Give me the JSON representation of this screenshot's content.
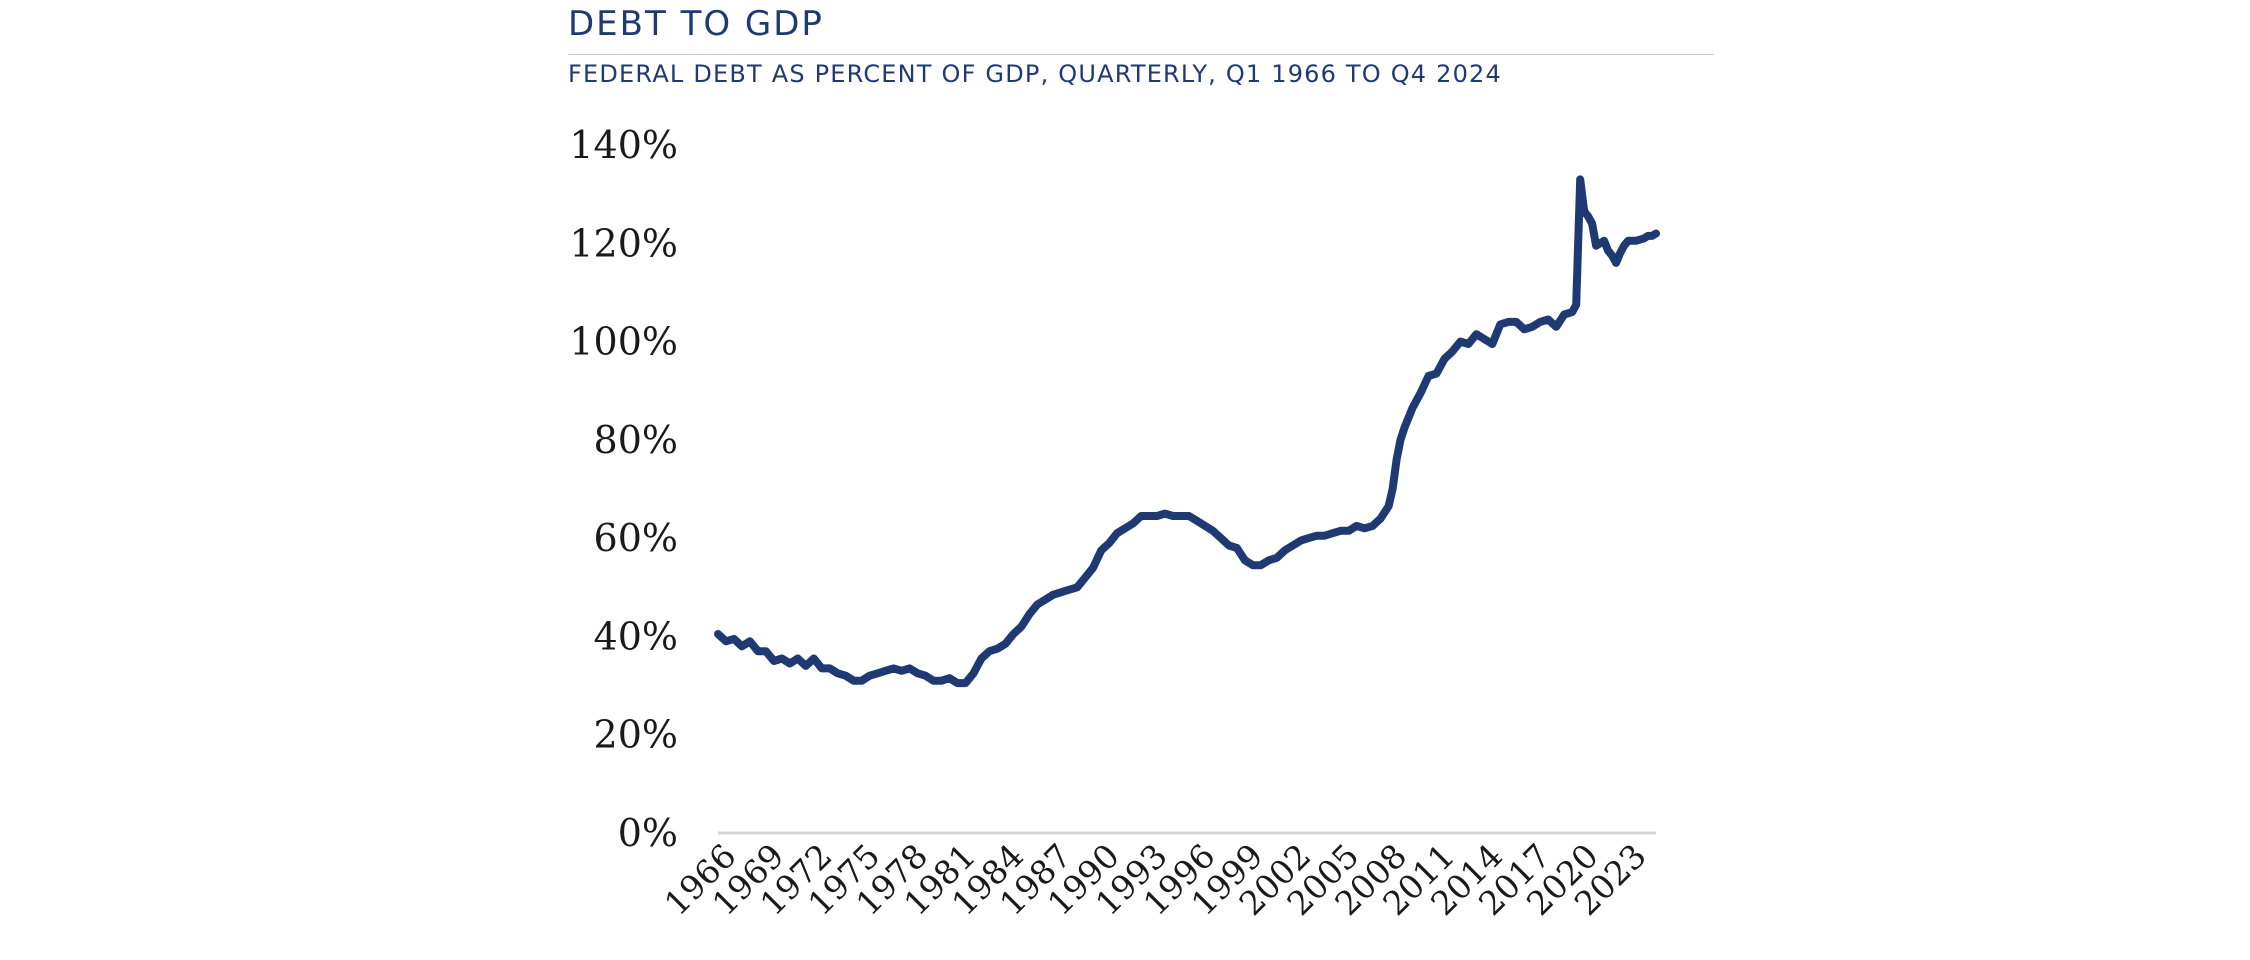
{
  "chart_data": {
    "type": "line",
    "title": "DEBT TO GDP",
    "subtitle": "FEDERAL DEBT AS PERCENT OF GDP, QUARTERLY, Q1 1966 TO Q4 2024",
    "xlabel": "",
    "ylabel": "",
    "ylim": [
      0,
      140
    ],
    "xlim": [
      1966.0,
      2024.75
    ],
    "y_ticks": [
      0,
      20,
      40,
      60,
      80,
      100,
      120,
      140
    ],
    "y_tick_labels": [
      "0%",
      "20%",
      "40%",
      "60%",
      "80%",
      "100%",
      "120%",
      "140%"
    ],
    "x_ticks": [
      1966,
      1969,
      1972,
      1975,
      1978,
      1981,
      1984,
      1987,
      1990,
      1993,
      1996,
      1999,
      2002,
      2005,
      2008,
      2011,
      2014,
      2017,
      2020,
      2023
    ],
    "x_tick_labels": [
      "1966",
      "1969",
      "1972",
      "1975",
      "1978",
      "1981",
      "1984",
      "1987",
      "1990",
      "1993",
      "1996",
      "1999",
      "2002",
      "2005",
      "2008",
      "2011",
      "2014",
      "2017",
      "2020",
      "2023"
    ],
    "grid": false,
    "legend": "none",
    "series": [
      {
        "name": "Federal Debt as Percent of GDP",
        "color": "#1f3a72",
        "x": [
          1966.0,
          1966.5,
          1967.0,
          1967.5,
          1968.0,
          1968.5,
          1969.0,
          1969.5,
          1970.0,
          1970.5,
          1971.0,
          1971.5,
          1972.0,
          1972.5,
          1973.0,
          1973.5,
          1974.0,
          1974.5,
          1975.0,
          1975.5,
          1976.0,
          1976.5,
          1977.0,
          1977.5,
          1978.0,
          1978.5,
          1979.0,
          1979.5,
          1980.0,
          1980.5,
          1981.0,
          1981.5,
          1982.0,
          1982.5,
          1983.0,
          1983.5,
          1984.0,
          1984.5,
          1985.0,
          1985.5,
          1986.0,
          1986.5,
          1987.0,
          1987.5,
          1988.0,
          1988.5,
          1989.0,
          1989.5,
          1990.0,
          1990.5,
          1991.0,
          1991.5,
          1992.0,
          1992.5,
          1993.0,
          1993.5,
          1994.0,
          1994.5,
          1995.0,
          1995.5,
          1996.0,
          1996.5,
          1997.0,
          1997.5,
          1998.0,
          1998.5,
          1999.0,
          1999.5,
          2000.0,
          2000.5,
          2001.0,
          2001.5,
          2002.0,
          2002.5,
          2003.0,
          2003.5,
          2004.0,
          2004.5,
          2005.0,
          2005.5,
          2006.0,
          2006.5,
          2007.0,
          2007.5,
          2008.0,
          2008.25,
          2008.5,
          2008.75,
          2009.0,
          2009.25,
          2009.5,
          2010.0,
          2010.5,
          2011.0,
          2011.5,
          2012.0,
          2012.5,
          2013.0,
          2013.5,
          2014.0,
          2014.5,
          2015.0,
          2015.5,
          2016.0,
          2016.5,
          2017.0,
          2017.5,
          2018.0,
          2018.5,
          2019.0,
          2019.5,
          2019.75,
          2020.0,
          2020.25,
          2020.5,
          2020.75,
          2021.0,
          2021.25,
          2021.5,
          2021.75,
          2022.0,
          2022.25,
          2022.5,
          2022.75,
          2023.0,
          2023.5,
          2024.0,
          2024.25,
          2024.5,
          2024.75
        ],
        "values": [
          40.5,
          39.0,
          39.5,
          38.0,
          39.0,
          37.0,
          37.0,
          35.0,
          35.5,
          34.5,
          35.5,
          34.0,
          35.5,
          33.5,
          33.5,
          32.5,
          32.0,
          31.0,
          31.0,
          32.0,
          32.5,
          33.0,
          33.5,
          33.0,
          33.5,
          32.5,
          32.0,
          31.0,
          31.0,
          31.5,
          30.5,
          30.5,
          32.5,
          35.5,
          37.0,
          37.5,
          38.5,
          40.5,
          42.0,
          44.5,
          46.5,
          47.5,
          48.5,
          49.0,
          49.5,
          50.0,
          52.0,
          54.0,
          57.5,
          59.0,
          61.0,
          62.0,
          63.0,
          64.5,
          64.5,
          64.5,
          65.0,
          64.5,
          64.5,
          64.5,
          63.5,
          62.5,
          61.5,
          60.0,
          58.5,
          58.0,
          55.5,
          54.5,
          54.5,
          55.5,
          56.0,
          57.5,
          58.5,
          59.5,
          60.0,
          60.5,
          60.5,
          61.0,
          61.5,
          61.5,
          62.5,
          62.0,
          62.5,
          64.0,
          66.5,
          70.0,
          76.0,
          80.0,
          82.5,
          84.5,
          86.5,
          89.5,
          93.0,
          93.5,
          96.5,
          98.0,
          100.0,
          99.5,
          101.5,
          100.5,
          99.5,
          103.5,
          104.0,
          104.0,
          102.5,
          103.0,
          104.0,
          104.5,
          103.0,
          105.5,
          106.0,
          107.5,
          133.0,
          126.5,
          125.5,
          124.0,
          119.5,
          120.0,
          120.5,
          118.5,
          117.5,
          116.0,
          118.0,
          119.5,
          120.5,
          120.5,
          121.0,
          121.5,
          121.5,
          122.0
        ]
      }
    ]
  }
}
